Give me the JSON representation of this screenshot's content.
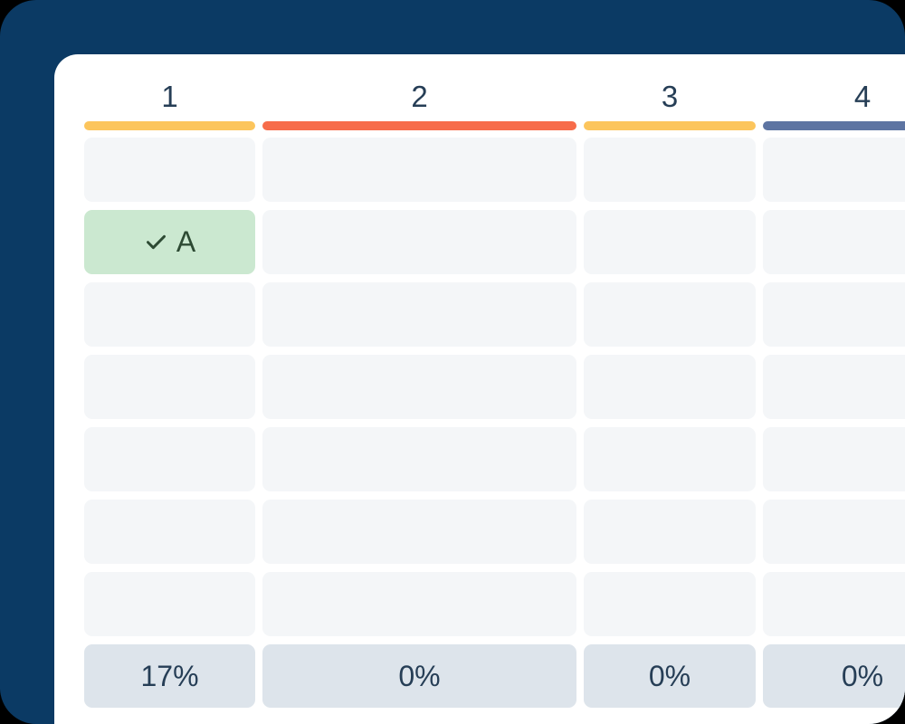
{
  "theme": {
    "outer_background": "#000000",
    "frame_color": "#0b3a64",
    "card_color": "#ffffff",
    "cell_color": "#f4f6f8",
    "text_color": "#263e56",
    "result_cell_color": "#dde4eb",
    "selected_cell_color": "#cbe8d0",
    "selected_text_color": "#2d4a33"
  },
  "board": {
    "row_count": 7
  },
  "columns": [
    {
      "label": "1",
      "bar_color": "#fcc55c",
      "result": "17%"
    },
    {
      "label": "2",
      "bar_color": "#f76c4a",
      "result": "0%"
    },
    {
      "label": "3",
      "bar_color": "#fcc55c",
      "result": "0%"
    },
    {
      "label": "4",
      "bar_color": "#5d74a2",
      "result": "0%"
    }
  ],
  "selected_answer": {
    "column_index": 0,
    "row_index": 1,
    "label": "A",
    "icon": "check-icon"
  }
}
